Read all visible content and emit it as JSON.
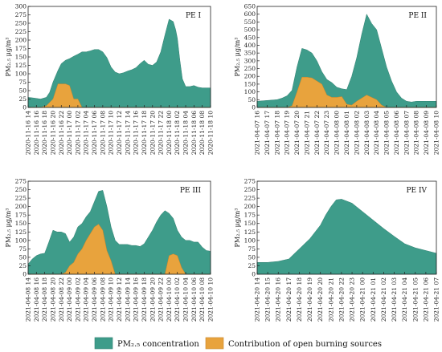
{
  "colors": {
    "pm": "#3e9c8a",
    "burn": "#e8a33d",
    "axis": "#222222"
  },
  "legend": {
    "pm_label": "PM₂.₅ concentration",
    "burn_label": "Contribution of open burning sources"
  },
  "chart_data": [
    {
      "type": "area",
      "panel": "PE I",
      "title": "PE I",
      "ylabel": "PM₂.₅  μg/m³",
      "ylim": [
        0,
        300
      ],
      "yticks": [
        0,
        25,
        50,
        75,
        100,
        125,
        150,
        175,
        200,
        225,
        250,
        275,
        300
      ],
      "xticks_time": [
        "14",
        "16",
        "18",
        "20",
        "22",
        "00",
        "02",
        "04",
        "06",
        "08",
        "10",
        "12",
        "14",
        "16",
        "18",
        "20",
        "22",
        "00",
        "02",
        "04",
        "06",
        "08",
        "10"
      ],
      "xticks_date": [
        "2020-11-16",
        "2020-11-16",
        "2020-11-16",
        "2020-11-16",
        "2020-11-16",
        "2020-11-17",
        "2020-11-17",
        "2020-11-17",
        "2020-11-17",
        "2020-11-17",
        "2020-11-17",
        "2020-11-17",
        "2020-11-17",
        "2020-11-17",
        "2020-11-17",
        "2020-11-17",
        "2020-11-17",
        "2020-11-18",
        "2020-11-18",
        "2020-11-18",
        "2020-11-18",
        "2020-11-18",
        "2020-11-18"
      ],
      "x": [
        0,
        0.7,
        1.5,
        2.2,
        2.6,
        3.0,
        3.6,
        4.0,
        4.5,
        5.0,
        5.5,
        6.0,
        6.5,
        7.0,
        7.5,
        8.0,
        8.5,
        9.0,
        9.5,
        10,
        10.5,
        11,
        11.5,
        12,
        12.5,
        13,
        13.5,
        14,
        14.5,
        15,
        15.5,
        16,
        16.5,
        17,
        17.5,
        17.8,
        18.0,
        18.3,
        18.6,
        19,
        19.5,
        20,
        20.5,
        21,
        21.5,
        22
      ],
      "series": [
        {
          "name": "PM₂.₅ concentration",
          "values": [
            30,
            28,
            25,
            30,
            45,
            75,
            110,
            130,
            140,
            145,
            152,
            158,
            165,
            165,
            168,
            172,
            172,
            165,
            148,
            120,
            105,
            100,
            103,
            108,
            112,
            118,
            130,
            140,
            128,
            125,
            135,
            165,
            215,
            262,
            255,
            230,
            205,
            140,
            85,
            62,
            62,
            65,
            60,
            58,
            58,
            58
          ]
        },
        {
          "name": "Contribution of open burning sources",
          "values": [
            0,
            0,
            0,
            5,
            15,
            25,
            70,
            70,
            70,
            65,
            25,
            25,
            0,
            0,
            0,
            0,
            0,
            0,
            0,
            0,
            0,
            0,
            0,
            0,
            0,
            0,
            0,
            0,
            0,
            0,
            0,
            0,
            0,
            0,
            0,
            0,
            0,
            0,
            0,
            0,
            0,
            0,
            0,
            0,
            0,
            0
          ]
        }
      ]
    },
    {
      "type": "area",
      "panel": "PE II",
      "title": "PE II",
      "ylabel": "PM₂.₅  μg/m³",
      "ylim": [
        0,
        650
      ],
      "yticks": [
        0,
        50,
        100,
        150,
        200,
        250,
        300,
        350,
        400,
        450,
        500,
        550,
        600,
        650
      ],
      "xticks_time": [
        "16",
        "17",
        "18",
        "19",
        "20",
        "21",
        "22",
        "23",
        "00",
        "01",
        "02",
        "03",
        "04",
        "05",
        "06",
        "07",
        "08",
        "09",
        "10"
      ],
      "xticks_date": [
        "2021-04-07",
        "2021-04-07",
        "2021-04-07",
        "2021-04-07",
        "2021-04-07",
        "2021-04-07",
        "2021-04-07",
        "2021-04-07",
        "2021-04-08",
        "2021-04-08",
        "2021-04-08",
        "2021-04-08",
        "2021-04-08",
        "2021-04-08",
        "2021-04-08",
        "2021-04-08",
        "2021-04-08",
        "2021-04-08",
        "2021-04-08"
      ],
      "x": [
        0,
        1,
        2,
        2.5,
        3,
        3.5,
        4,
        4.5,
        5,
        5.5,
        6,
        6.5,
        7,
        7.5,
        8,
        8.5,
        9,
        9.5,
        10,
        10.5,
        11,
        11.5,
        12,
        12.5,
        13,
        13.5,
        14,
        14.5,
        15,
        15.5,
        16,
        17,
        18
      ],
      "series": [
        {
          "name": "PM₂.₅ concentration",
          "values": [
            40,
            45,
            50,
            60,
            75,
            110,
            260,
            380,
            370,
            350,
            300,
            230,
            180,
            160,
            130,
            120,
            115,
            200,
            320,
            470,
            600,
            540,
            500,
            380,
            260,
            170,
            100,
            60,
            40,
            35,
            40,
            40,
            40
          ]
        },
        {
          "name": "Contribution of open burning sources",
          "values": [
            0,
            0,
            0,
            0,
            0,
            10,
            100,
            195,
            195,
            190,
            170,
            150,
            80,
            65,
            65,
            70,
            20,
            15,
            40,
            60,
            80,
            65,
            50,
            15,
            0,
            0,
            0,
            0,
            0,
            0,
            0,
            0,
            0
          ]
        }
      ]
    },
    {
      "type": "area",
      "panel": "PE III",
      "title": "PE III",
      "ylabel": "PM₂.₅  μg/m³",
      "ylim": [
        0,
        275
      ],
      "yticks": [
        0,
        25,
        50,
        75,
        100,
        125,
        150,
        175,
        200,
        225,
        250,
        275
      ],
      "xticks_time": [
        "14",
        "16",
        "18",
        "20",
        "22",
        "00",
        "02",
        "04",
        "06",
        "08",
        "10",
        "12",
        "14",
        "16",
        "18",
        "20",
        "22",
        "00",
        "02",
        "04",
        "06",
        "08",
        "10"
      ],
      "xticks_date": [
        "2021-04-08",
        "2021-04-08",
        "2021-04-08",
        "2021-04-08",
        "2021-04-08",
        "2021-04-09",
        "2021-04-09",
        "2021-04-09",
        "2021-04-09",
        "2021-04-09",
        "2021-04-09",
        "2021-04-09",
        "2021-04-09",
        "2021-04-09",
        "2021-04-09",
        "2021-04-09",
        "2021-04-09",
        "2021-04-10",
        "2021-04-10",
        "2021-04-10",
        "2021-04-10",
        "2021-04-10",
        "2021-04-10"
      ],
      "x": [
        0,
        0.5,
        1,
        1.5,
        2,
        2.5,
        3,
        3.5,
        4,
        4.5,
        5,
        5.5,
        6,
        6.5,
        7,
        7.5,
        8,
        8.5,
        9,
        9.5,
        10,
        10.5,
        11,
        11.5,
        12,
        12.5,
        13,
        13.5,
        14,
        14.5,
        15,
        15.5,
        16,
        16.5,
        17,
        17.5,
        18,
        18.5,
        19,
        19.5,
        20,
        20.5,
        21,
        21.5,
        22
      ],
      "series": [
        {
          "name": "PM₂.₅ concentration",
          "values": [
            30,
            45,
            55,
            60,
            62,
            95,
            130,
            125,
            125,
            120,
            95,
            110,
            140,
            150,
            170,
            185,
            215,
            245,
            248,
            200,
            140,
            100,
            88,
            88,
            88,
            85,
            85,
            82,
            90,
            110,
            130,
            155,
            175,
            188,
            180,
            165,
            130,
            110,
            100,
            100,
            95,
            95,
            80,
            70,
            68
          ]
        },
        {
          "name": "Contribution of open burning sources",
          "values": [
            0,
            0,
            0,
            0,
            0,
            0,
            0,
            0,
            0,
            5,
            25,
            35,
            60,
            75,
            100,
            120,
            140,
            148,
            130,
            70,
            40,
            0,
            0,
            0,
            0,
            0,
            0,
            0,
            0,
            0,
            0,
            0,
            0,
            0,
            55,
            60,
            55,
            20,
            0,
            0,
            0,
            0,
            0,
            0,
            0
          ]
        }
      ]
    },
    {
      "type": "area",
      "panel": "PE IV",
      "title": "PE IV",
      "ylabel": "PM₂.₅  μg/m³",
      "ylim": [
        0,
        275
      ],
      "yticks": [
        0,
        25,
        50,
        75,
        100,
        125,
        150,
        175,
        200,
        225,
        250,
        275
      ],
      "xticks_time": [
        "14",
        "15",
        "16",
        "17",
        "18",
        "19",
        "20",
        "21",
        "22",
        "23",
        "00",
        "01",
        "02",
        "03",
        "04",
        "05",
        "06",
        "07"
      ],
      "xticks_date": [
        "2021-04-20",
        "2021-04-20",
        "2021-04-20",
        "2021-04-20",
        "2021-04-20",
        "2021-04-20",
        "2021-04-20",
        "2021-04-20",
        "2021-04-20",
        "2021-04-20",
        "2021-04-21",
        "2021-04-21",
        "2021-04-21",
        "2021-04-21",
        "2021-04-21",
        "2021-04-21",
        "2021-04-21",
        "2021-04-21"
      ],
      "x": [
        0,
        1,
        2,
        3,
        4,
        5,
        6,
        6.5,
        7,
        7.5,
        8,
        9,
        10,
        11,
        12,
        13,
        14,
        15,
        16,
        17
      ],
      "series": [
        {
          "name": "PM₂.₅ concentration",
          "values": [
            35,
            35,
            38,
            45,
            75,
            105,
            145,
            175,
            200,
            220,
            222,
            210,
            185,
            160,
            135,
            112,
            90,
            78,
            70,
            62
          ]
        },
        {
          "name": "Contribution of open burning sources",
          "values": [
            0,
            0,
            0,
            0,
            0,
            0,
            0,
            0,
            0,
            0,
            0,
            0,
            0,
            0,
            0,
            0,
            0,
            0,
            0,
            0
          ]
        }
      ]
    }
  ]
}
